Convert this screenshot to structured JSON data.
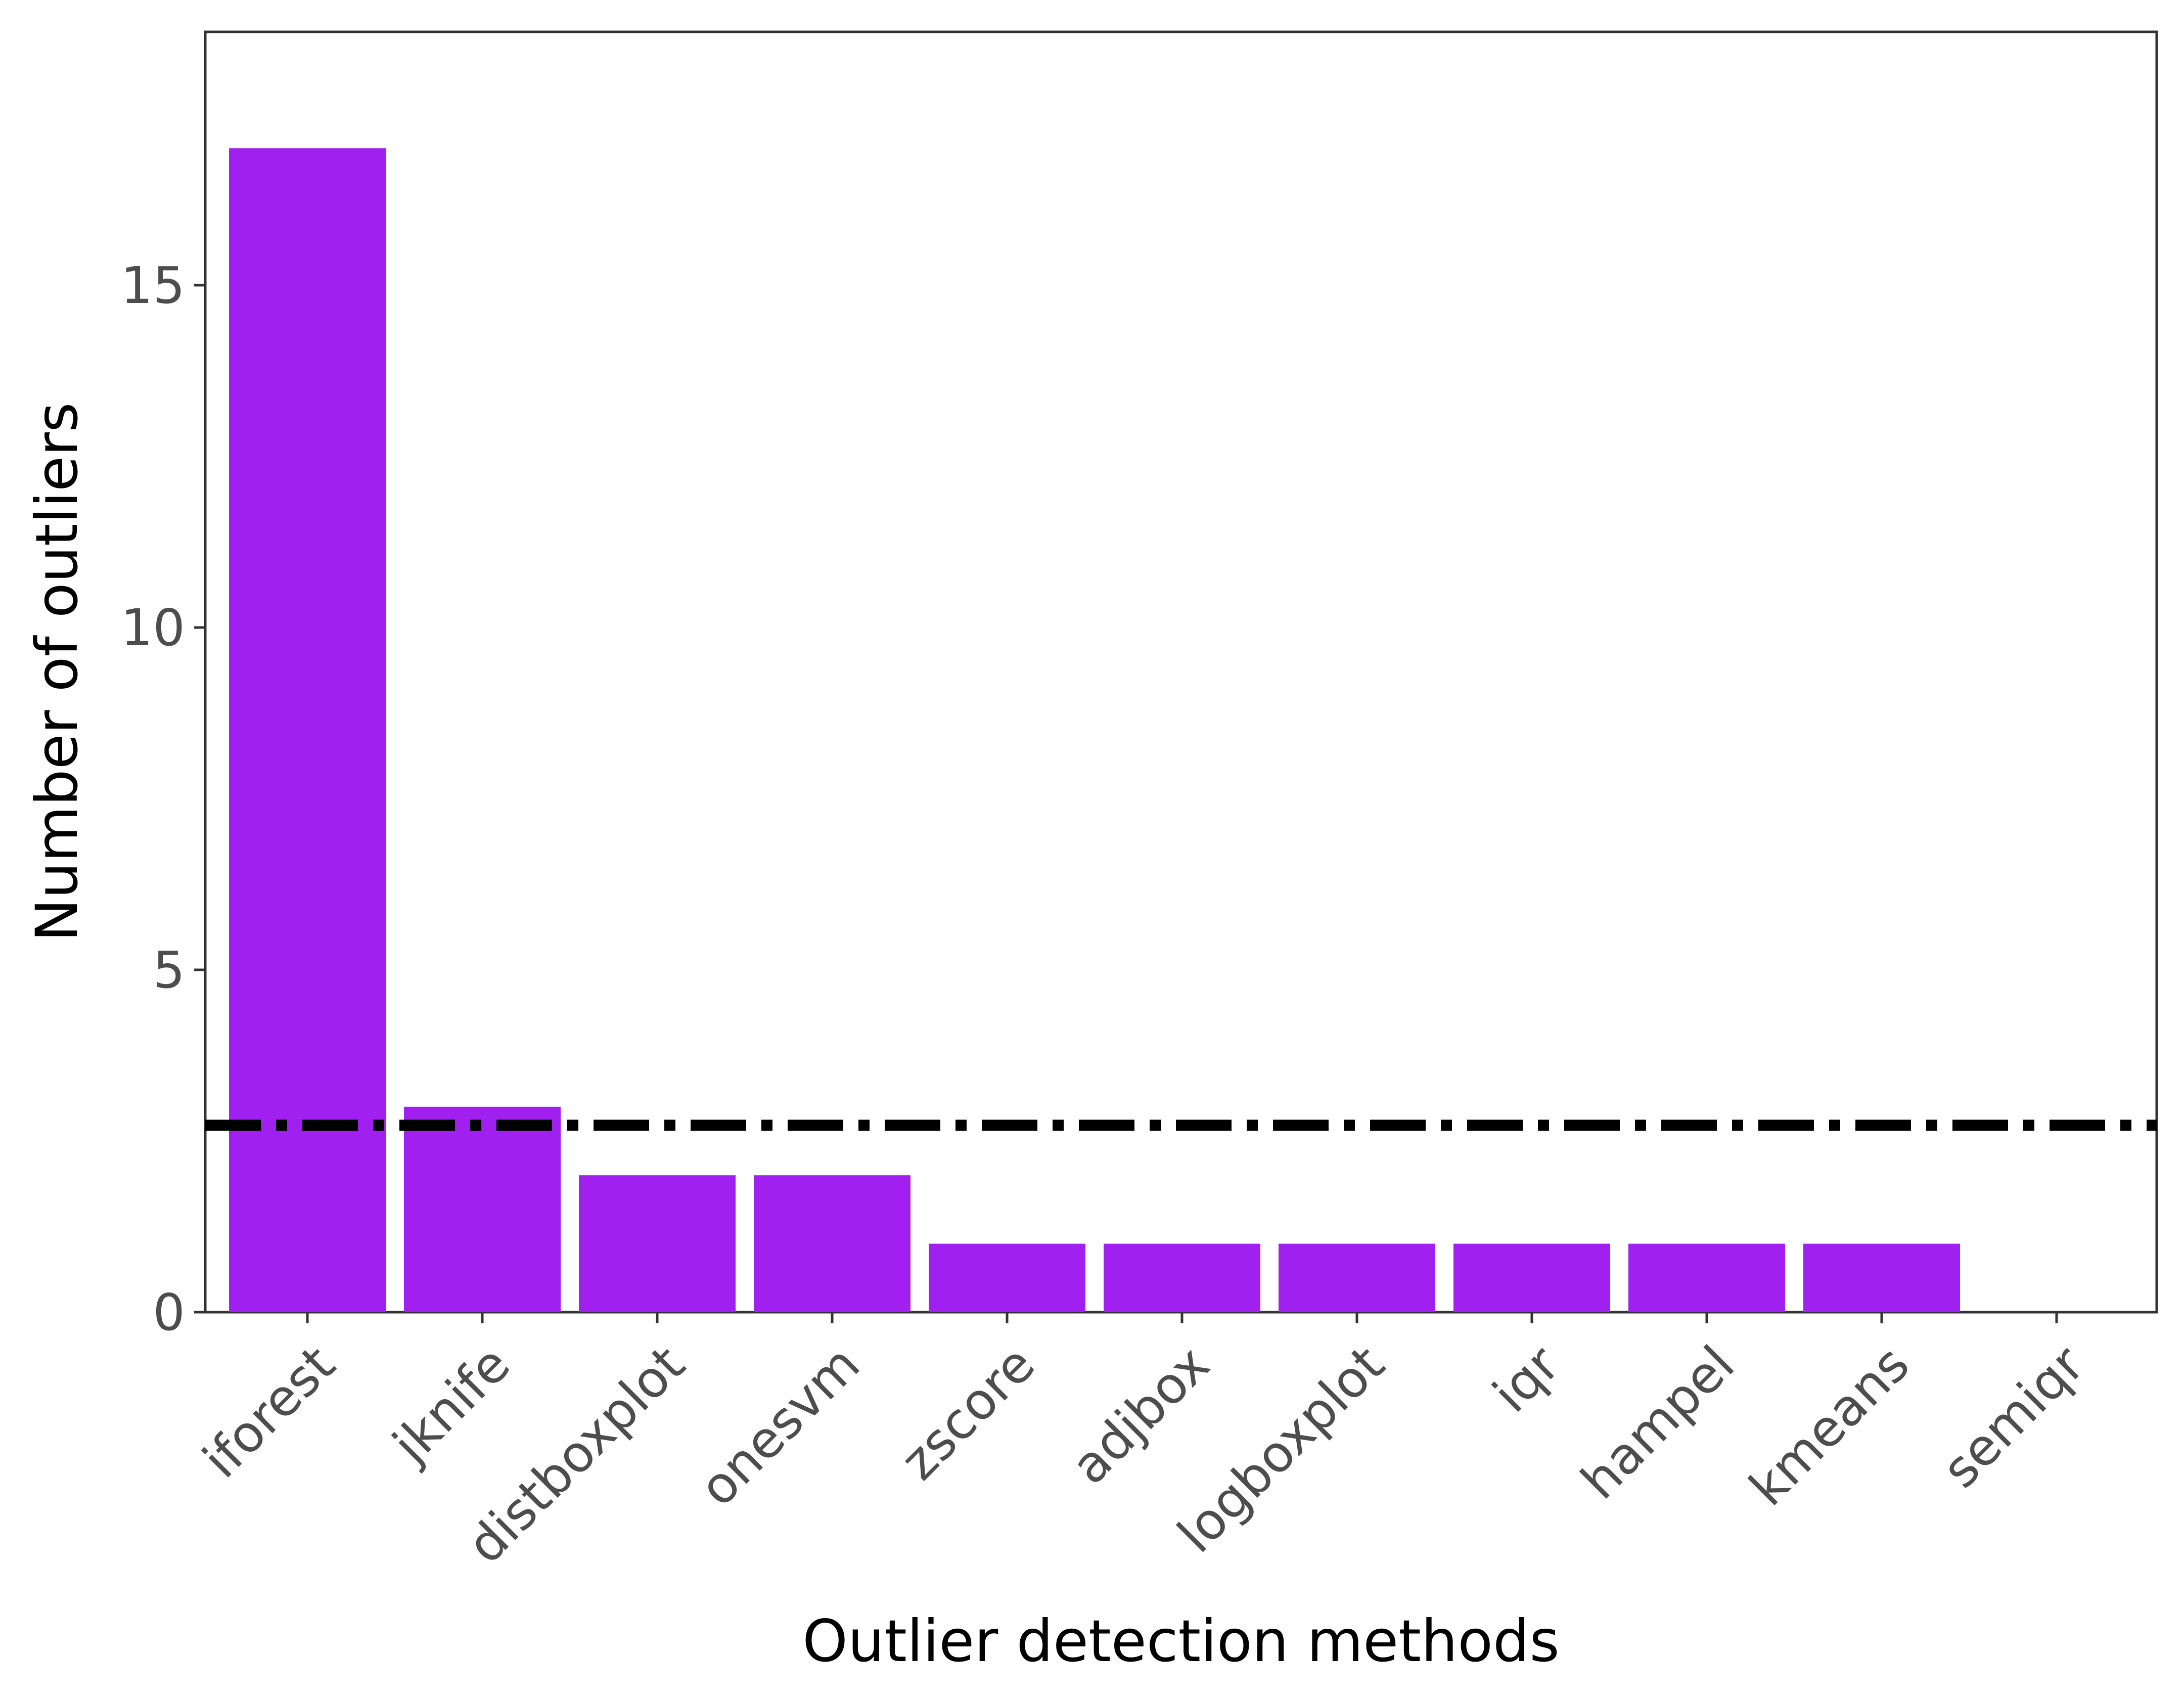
{
  "chart_data": {
    "type": "bar",
    "title": "",
    "xlabel": "Outlier detection methods",
    "ylabel": "Number of outliers",
    "categories": [
      "iforest",
      "jknife",
      "distboxplot",
      "onesvm",
      "zscore",
      "adjbox",
      "logboxplot",
      "iqr",
      "hampel",
      "kmeans",
      "semiqr"
    ],
    "values": [
      17,
      3,
      2,
      2,
      1,
      1,
      1,
      1,
      1,
      1,
      0
    ],
    "ylim": [
      0,
      18.7
    ],
    "yticks": [
      0,
      5,
      10,
      15
    ],
    "reference_line": {
      "value": 2.73,
      "style": "dash-dot",
      "color": "#000000"
    },
    "bar_color": "#a020f0",
    "grid": false,
    "legend": "none"
  }
}
